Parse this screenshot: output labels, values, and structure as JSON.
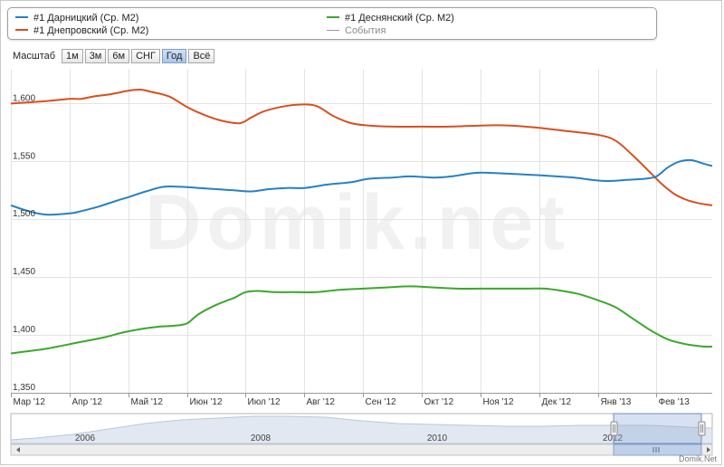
{
  "legend": {
    "items": [
      {
        "label": "#1 Дарницкий (Ср. М2)",
        "color": "#2581c4"
      },
      {
        "label": "#1 Деснянский (Ср. М2)",
        "color": "#3aa82b"
      },
      {
        "label": "#1 Днепровский (Ср. М2)",
        "color": "#d7501e"
      },
      {
        "label": "События",
        "color": "#9a9a9a"
      }
    ]
  },
  "zoom": {
    "label": "Масштаб",
    "buttons": [
      "1м",
      "3м",
      "6м",
      "СНГ",
      "Год",
      "Всё"
    ],
    "active": "Год"
  },
  "watermark": "Domik.net",
  "credit": "Domik.Net",
  "chart_data": {
    "type": "line",
    "title": "",
    "xlabel": "",
    "ylabel": "",
    "ylim": [
      1350,
      1630
    ],
    "yticks": [
      "1,350",
      "1,400",
      "1,450",
      "1,500",
      "1,550",
      "1,600"
    ],
    "ytick_values": [
      1350,
      1400,
      1450,
      1500,
      1550,
      1600
    ],
    "xlim": [
      0,
      11.95
    ],
    "xticks": [
      "Мар '12",
      "Апр '12",
      "Май '12",
      "Июн '12",
      "Июл '12",
      "Авг '12",
      "Сен '12",
      "Окт '12",
      "Ноя '12",
      "Дек '12",
      "Янв '13",
      "Фев '13"
    ],
    "xtick_values": [
      0,
      1,
      2,
      3,
      4,
      5,
      6,
      7,
      8,
      9,
      10,
      11
    ],
    "grid": true,
    "legend_position": "top",
    "series": [
      {
        "name": "#1 Днепровский (Ср. М2)",
        "color": "#d7501e",
        "x": [
          0,
          0.3,
          0.6,
          1,
          1.2,
          1.4,
          1.7,
          2,
          2.2,
          2.4,
          2.7,
          3,
          3.3,
          3.6,
          3.9,
          4.1,
          4.3,
          4.6,
          4.9,
          5.2,
          5.5,
          5.8,
          6.1,
          6.5,
          7,
          7.5,
          8,
          8.5,
          9,
          9.5,
          10,
          10.3,
          10.6,
          10.9,
          11.1,
          11.3,
          11.5,
          11.7,
          11.95
        ],
        "y": [
          1600,
          1601,
          1602,
          1604,
          1604,
          1606,
          1608,
          1611,
          1612,
          1610,
          1606,
          1597,
          1590,
          1585,
          1583,
          1588,
          1593,
          1597,
          1599,
          1598,
          1589,
          1583,
          1581,
          1580,
          1580,
          1580,
          1581,
          1581,
          1579,
          1576,
          1573,
          1568,
          1555,
          1540,
          1530,
          1522,
          1517,
          1514,
          1512
        ]
      },
      {
        "name": "#1 Дарницкий (Ср. М2)",
        "color": "#2581c4",
        "x": [
          0,
          0.3,
          0.6,
          1,
          1.2,
          1.5,
          1.8,
          2,
          2.3,
          2.6,
          2.9,
          3.2,
          3.5,
          3.8,
          4.1,
          4.4,
          4.7,
          5,
          5.4,
          5.8,
          6.1,
          6.5,
          6.8,
          7.2,
          7.5,
          7.9,
          8.2,
          8.6,
          9,
          9.3,
          9.6,
          9.9,
          10.2,
          10.5,
          10.8,
          11,
          11.2,
          11.4,
          11.6,
          11.8,
          11.95
        ],
        "y": [
          1512,
          1507,
          1504,
          1505,
          1507,
          1511,
          1516,
          1519,
          1524,
          1528,
          1528,
          1527,
          1526,
          1525,
          1524,
          1526,
          1527,
          1527,
          1530,
          1532,
          1535,
          1536,
          1537,
          1536,
          1537,
          1540,
          1540,
          1539,
          1538,
          1537,
          1536,
          1534,
          1533,
          1534,
          1535,
          1537,
          1545,
          1550,
          1551,
          1548,
          1546
        ]
      },
      {
        "name": "#1 Деснянский (Ср. М2)",
        "color": "#3aa82b",
        "x": [
          0,
          0.3,
          0.6,
          1,
          1.3,
          1.6,
          1.9,
          2.2,
          2.5,
          2.8,
          3,
          3.2,
          3.5,
          3.8,
          4,
          4.2,
          4.5,
          4.8,
          5.2,
          5.6,
          6,
          6.4,
          6.8,
          7.2,
          7.6,
          8,
          8.4,
          8.8,
          9.1,
          9.4,
          9.7,
          10,
          10.3,
          10.6,
          10.9,
          11.2,
          11.5,
          11.8,
          11.95
        ],
        "y": [
          1384,
          1386,
          1388,
          1392,
          1395,
          1398,
          1402,
          1405,
          1407,
          1408,
          1410,
          1418,
          1426,
          1432,
          1437,
          1438,
          1437,
          1437,
          1437,
          1439,
          1440,
          1441,
          1442,
          1441,
          1440,
          1440,
          1440,
          1440,
          1440,
          1438,
          1435,
          1430,
          1424,
          1414,
          1404,
          1396,
          1392,
          1390,
          1390
        ]
      }
    ],
    "navigator": {
      "x_labels": [
        "2006",
        "2008",
        "2010",
        "2012"
      ]
    }
  }
}
